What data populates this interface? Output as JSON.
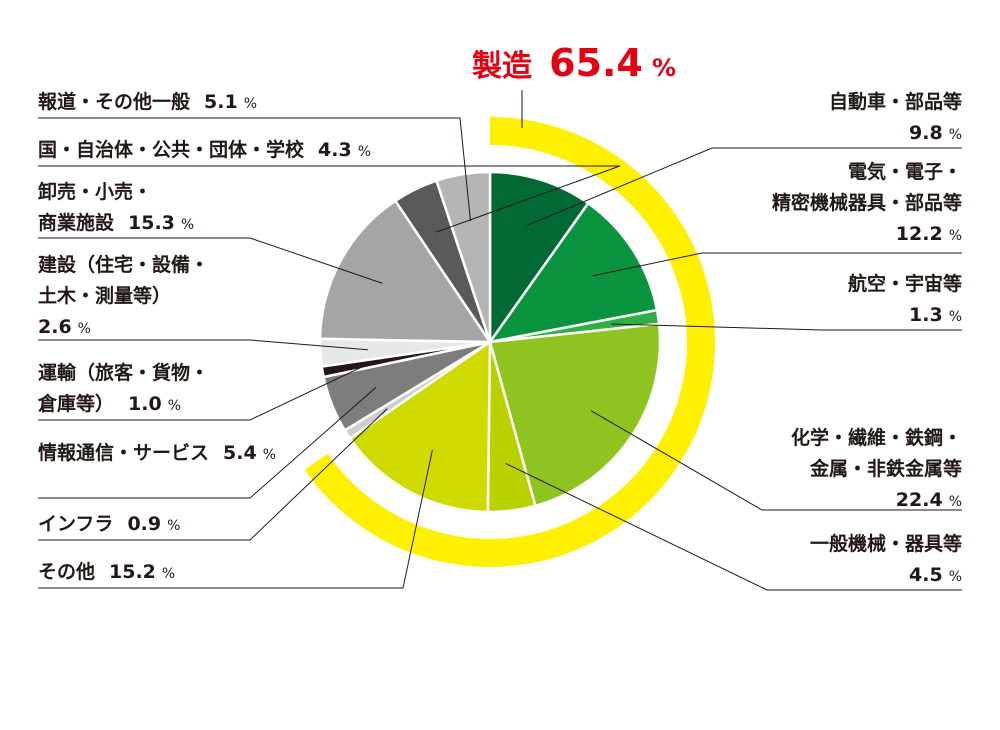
{
  "chart_data": {
    "type": "pie",
    "unit": "%",
    "colors": {
      "highlight_ring": "#fff000",
      "highlight_text": "#e50012",
      "slice_border": "#ffffff",
      "text": "#231815"
    },
    "group": {
      "name": "製造",
      "value": 65.4
    },
    "slices": [
      {
        "label_lines": [
          "自動車・部品等"
        ],
        "value": 9.8,
        "color": "#006934",
        "in_group": true
      },
      {
        "label_lines": [
          "電気・電子・",
          "精密機械器具・部品等"
        ],
        "value": 12.2,
        "color": "#0a9440",
        "in_group": true
      },
      {
        "label_lines": [
          "航空・宇宙等"
        ],
        "value": 1.3,
        "color": "#2fae44",
        "in_group": true
      },
      {
        "label_lines": [
          "化学・繊維・鉄鋼・",
          "金属・非鉄金属等"
        ],
        "value": 22.4,
        "color": "#8fc31f",
        "in_group": true
      },
      {
        "label_lines": [
          "一般機械・器具等"
        ],
        "value": 4.5,
        "color": "#b8d200",
        "in_group": true
      },
      {
        "label_lines": [
          "その他"
        ],
        "value": 15.2,
        "color": "#cfdb00",
        "in_group": true
      },
      {
        "label_lines": [
          "インフラ"
        ],
        "value": 0.9,
        "color": "#cdcdcd",
        "in_group": false
      },
      {
        "label_lines": [
          "情報通信・サービス"
        ],
        "value": 5.4,
        "color": "#7d7d7d",
        "in_group": false
      },
      {
        "label_lines": [
          "運輸（旅客・貨物・",
          "倉庫等）"
        ],
        "value": 1.0,
        "color": "#231815",
        "in_group": false
      },
      {
        "label_lines": [
          "建設（住宅・設備・",
          "土木・測量等）"
        ],
        "value": 2.6,
        "color": "#e6e7e7",
        "in_group": false
      },
      {
        "label_lines": [
          "卸売・小売・",
          "商業施設"
        ],
        "value": 15.3,
        "color": "#a5a5a5",
        "in_group": false
      },
      {
        "label_lines": [
          "国・自治体・公共・団体・学校"
        ],
        "value": 4.3,
        "color": "#5a5a5a",
        "in_group": false
      },
      {
        "label_lines": [
          "報道・その他一般"
        ],
        "value": 5.1,
        "color": "#b4b4b4",
        "in_group": false
      }
    ]
  }
}
